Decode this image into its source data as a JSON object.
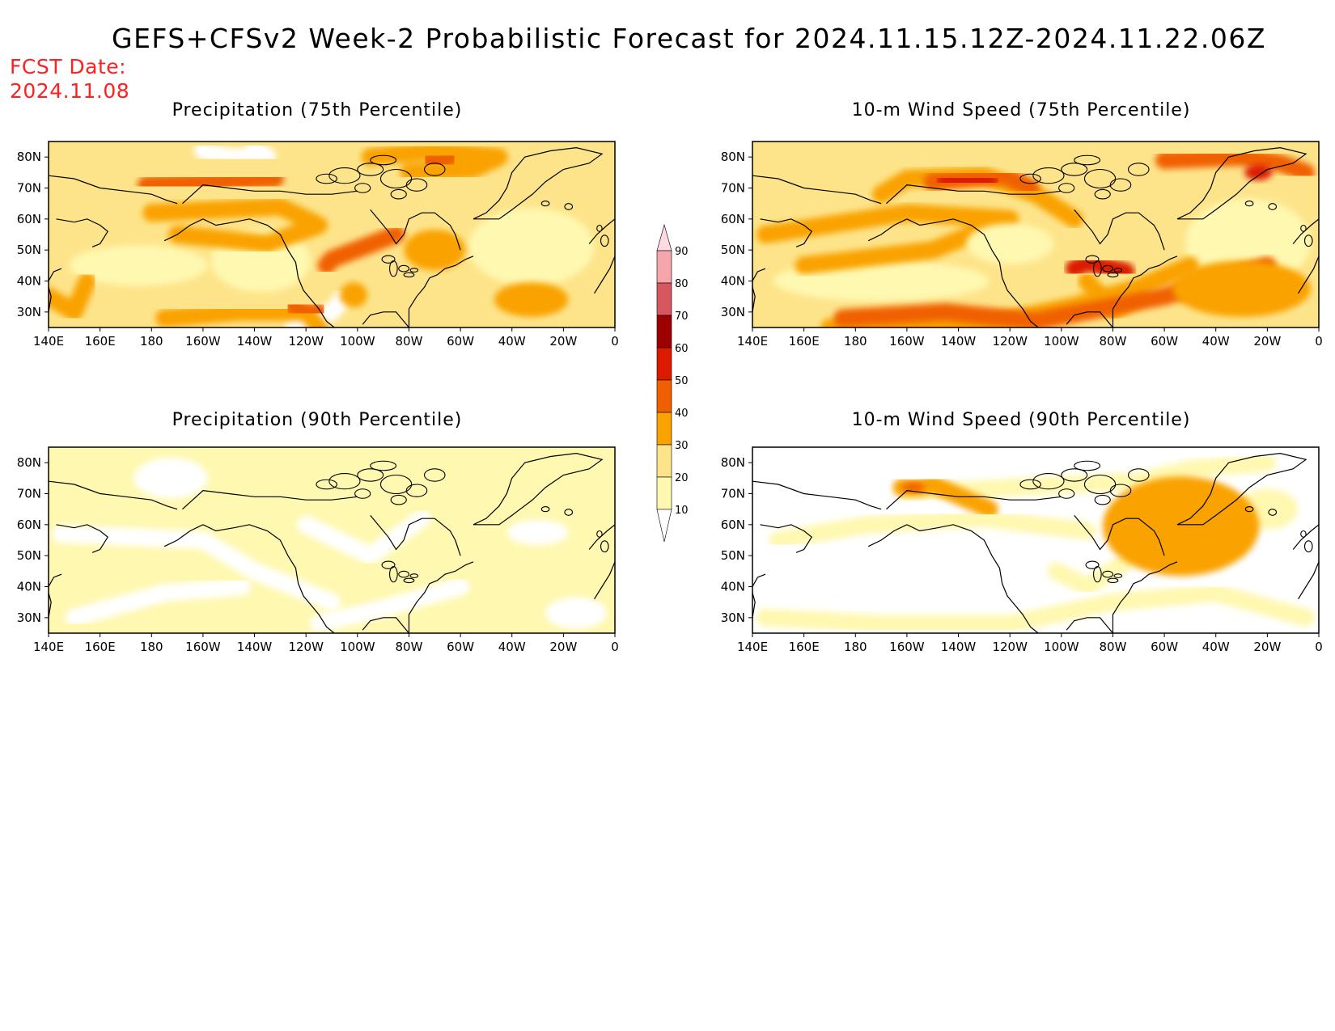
{
  "title": "GEFS+CFSv2 Week-2 Probabilistic Forecast for 2024.11.15.12Z-2024.11.22.06Z",
  "fcst_date": {
    "label": "FCST Date:",
    "value": "2024.11.08"
  },
  "axes": {
    "lon_ticks": [
      "140E",
      "160E",
      "180",
      "160W",
      "140W",
      "120W",
      "100W",
      "80W",
      "60W",
      "40W",
      "20W",
      "0"
    ],
    "lat_ticks": [
      "80N",
      "70N",
      "60N",
      "50N",
      "40N",
      "30N"
    ],
    "lon_range": [
      140,
      360
    ],
    "lat_range": [
      25,
      85
    ]
  },
  "panels": [
    {
      "id": "precip75",
      "title": "Precipitation (75th Percentile)",
      "base_level": 20,
      "patches": [
        {
          "lon": [
            200,
            210,
            225,
            220
          ],
          "lat": [
            82,
            80,
            80,
            83
          ],
          "level": 0
        },
        {
          "lon": [
            205,
            240
          ],
          "lat": [
            38,
            55
          ],
          "level": 10
        },
        {
          "lon": [
            235,
            250,
            255
          ],
          "lat": [
            25,
            30,
            35
          ],
          "level": 0
        },
        {
          "lon": [
            305,
            350
          ],
          "lat": [
            40,
            62
          ],
          "level": 10
        },
        {
          "lon": [
            150,
            200
          ],
          "lat": [
            40,
            50
          ],
          "level": 10
        },
        {
          "lon": [
            180,
            230,
            245,
            225,
            190
          ],
          "lat": [
            62,
            64,
            58,
            52,
            55
          ],
          "level": 30
        },
        {
          "lon": [
            185,
            215,
            240,
            245
          ],
          "lat": [
            28,
            30,
            30,
            25
          ],
          "level": 30
        },
        {
          "lon": [
            235,
            240,
            245
          ],
          "lat": [
            32,
            30,
            30
          ],
          "level": 40
        },
        {
          "lon": [
            140,
            150,
            155
          ],
          "lat": [
            35,
            30,
            40
          ],
          "level": 30
        },
        {
          "lon": [
            315,
            340
          ],
          "lat": [
            30,
            38
          ],
          "level": 30
        },
        {
          "lon": [
            280,
            300
          ],
          "lat": [
            45,
            55
          ],
          "level": 30
        },
        {
          "lon": [
            265,
            290,
            315,
            305,
            280
          ],
          "lat": [
            80,
            82,
            80,
            76,
            75
          ],
          "level": 30
        },
        {
          "lon": [
            178,
            205,
            228
          ],
          "lat": [
            71,
            72,
            73
          ],
          "level": 40
        },
        {
          "lon": [
            248,
            250,
            275
          ],
          "lat": [
            45,
            47,
            55
          ],
          "level": 40
        },
        {
          "lon": [
            288,
            290,
            296
          ],
          "lat": [
            79,
            78,
            80
          ],
          "level": 40
        },
        {
          "lon": [
            255,
            262
          ],
          "lat": [
            33,
            38
          ],
          "level": 30
        }
      ]
    },
    {
      "id": "wind75",
      "title": "10-m Wind Speed (75th Percentile)",
      "base_level": 20,
      "patches": [
        {
          "lon": [
            270,
            280,
            290
          ],
          "lat": [
            40,
            30,
            35
          ],
          "level": 30
        },
        {
          "lon": [
            150,
            230
          ],
          "lat": [
            35,
            45
          ],
          "level": 10
        },
        {
          "lon": [
            310,
            355
          ],
          "lat": [
            40,
            65
          ],
          "level": 10
        },
        {
          "lon": [
            145,
            200,
            240,
            210,
            160
          ],
          "lat": [
            55,
            62,
            60,
            50,
            45
          ],
          "level": 30
        },
        {
          "lon": [
            190,
            200,
            230,
            250,
            265
          ],
          "lat": [
            68,
            73,
            74,
            68,
            60
          ],
          "level": 30
        },
        {
          "lon": [
            170,
            230,
            265,
            290,
            310
          ],
          "lat": [
            25,
            26,
            32,
            38,
            45
          ],
          "level": 30
        },
        {
          "lon": [
            175,
            215,
            250,
            300,
            340
          ],
          "lat": [
            28,
            30,
            27,
            35,
            45
          ],
          "level": 40
        },
        {
          "lon": [
            210,
            222,
            238,
            248
          ],
          "lat": [
            72,
            73,
            74,
            70
          ],
          "level": 40
        },
        {
          "lon": [
            215,
            225,
            232
          ],
          "lat": [
            72,
            73,
            72
          ],
          "level": 50
        },
        {
          "lon": [
            300,
            330,
            345,
            355
          ],
          "lat": [
            79,
            80,
            78,
            75
          ],
          "level": 40
        },
        {
          "lon": [
            333,
            340
          ],
          "lat": [
            76,
            74
          ],
          "level": 50
        },
        {
          "lon": [
            265,
            270,
            285
          ],
          "lat": [
            44,
            46,
            43
          ],
          "level": 50
        },
        {
          "lon": [
            225,
            255
          ],
          "lat": [
            47,
            57
          ],
          "level": 10
        },
        {
          "lon": [
            305,
            355
          ],
          "lat": [
            30,
            45
          ],
          "level": 30
        }
      ]
    },
    {
      "id": "precip90",
      "title": "Precipitation (90th Percentile)",
      "base_level": 10,
      "patches": [
        {
          "lon": [
            145,
            200,
            220,
            250
          ],
          "lat": [
            57,
            55,
            45,
            35
          ],
          "level": 0
        },
        {
          "lon": [
            150,
            185,
            215
          ],
          "lat": [
            30,
            38,
            40
          ],
          "level": 0
        },
        {
          "lon": [
            240,
            265,
            285
          ],
          "lat": [
            60,
            50,
            62
          ],
          "level": 0
        },
        {
          "lon": [
            245,
            270,
            300
          ],
          "lat": [
            28,
            33,
            40
          ],
          "level": 0
        },
        {
          "lon": [
            175,
            200
          ],
          "lat": [
            70,
            80
          ],
          "level": 0
        },
        {
          "lon": [
            320,
            340
          ],
          "lat": [
            55,
            60
          ],
          "level": 0
        },
        {
          "lon": [
            335,
            355
          ],
          "lat": [
            28,
            35
          ],
          "level": 0
        }
      ]
    },
    {
      "id": "wind90",
      "title": "10-m Wind Speed (90th Percentile)",
      "base_level": 0,
      "patches": [
        {
          "lon": [
            145,
            190,
            240,
            280,
            320,
            355
          ],
          "lat": [
            30,
            28,
            28,
            35,
            38,
            30
          ],
          "level": 10
        },
        {
          "lon": [
            150,
            185,
            230,
            270
          ],
          "lat": [
            55,
            60,
            62,
            58
          ],
          "level": 10
        },
        {
          "lon": [
            200,
            240,
            290,
            310,
            340
          ],
          "lat": [
            70,
            72,
            74,
            78,
            80
          ],
          "level": 10
        },
        {
          "lon": [
            258,
            270,
            285
          ],
          "lat": [
            45,
            40,
            48
          ],
          "level": 10
        },
        {
          "lon": [
            330,
            350
          ],
          "lat": [
            70,
            60
          ],
          "level": 10
        },
        {
          "lon": [
            198,
            205,
            210,
            232
          ],
          "lat": [
            72,
            72,
            73,
            65
          ],
          "level": 30
        },
        {
          "lon": [
            200,
            205
          ],
          "lat": [
            72,
            72
          ],
          "level": 40
        },
        {
          "lon": [
            278,
            335
          ],
          "lat": [
            45,
            74
          ],
          "level": 30
        }
      ]
    }
  ],
  "colorbar": {
    "labels": [
      "10",
      "20",
      "30",
      "40",
      "50",
      "60",
      "70",
      "80",
      "90"
    ],
    "colors": [
      "#fff8b0",
      "#fde48a",
      "#f9a200",
      "#f06000",
      "#dc1a00",
      "#9e0000",
      "#d6575f",
      "#f4a6ac",
      "#ffdbe0"
    ]
  }
}
